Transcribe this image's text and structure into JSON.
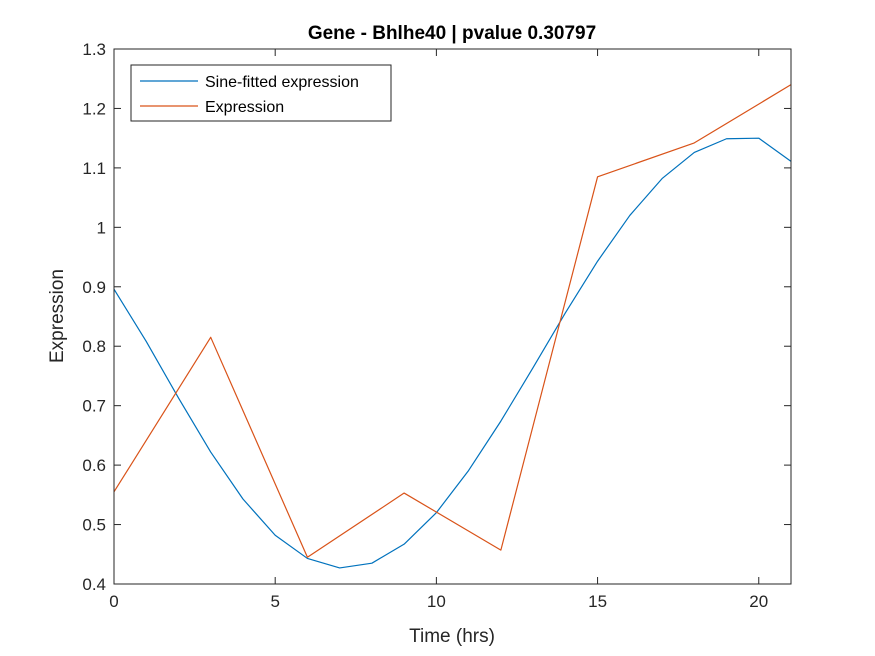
{
  "chart_data": {
    "type": "line",
    "title": "Gene - Bhlhe40 | pvalue 0.30797",
    "xlabel": "Time (hrs)",
    "ylabel": "Expression",
    "xlim": [
      0,
      21
    ],
    "ylim": [
      0.4,
      1.3
    ],
    "xticks": [
      0,
      5,
      10,
      15,
      20
    ],
    "xtick_labels": [
      "0",
      "5",
      "10",
      "15",
      "20"
    ],
    "yticks": [
      0.4,
      0.5,
      0.6,
      0.7,
      0.8,
      0.9,
      1.0,
      1.1,
      1.2,
      1.3
    ],
    "ytick_labels": [
      "0.4",
      "0.5",
      "0.6",
      "0.7",
      "0.8",
      "0.9",
      "1",
      "1.1",
      "1.2",
      "1.3"
    ],
    "grid": false,
    "legend_position": "top-left",
    "series": [
      {
        "name": "Sine-fitted expression",
        "color": "#0072BD",
        "x": [
          0,
          1,
          2,
          3,
          4,
          5,
          6,
          7,
          8,
          9,
          10,
          11,
          12,
          13,
          14,
          15,
          16,
          17,
          18,
          19,
          20,
          21
        ],
        "y": [
          0.896,
          0.808,
          0.713,
          0.622,
          0.543,
          0.482,
          0.443,
          0.427,
          0.435,
          0.467,
          0.52,
          0.591,
          0.674,
          0.764,
          0.856,
          0.943,
          1.02,
          1.082,
          1.126,
          1.149,
          1.15,
          1.111
        ]
      },
      {
        "name": "Expression",
        "color": "#D95319",
        "x": [
          0,
          3,
          6,
          9,
          12,
          15,
          18,
          21
        ],
        "y": [
          0.555,
          0.815,
          0.445,
          0.553,
          0.457,
          1.085,
          1.142,
          1.24
        ]
      }
    ]
  }
}
